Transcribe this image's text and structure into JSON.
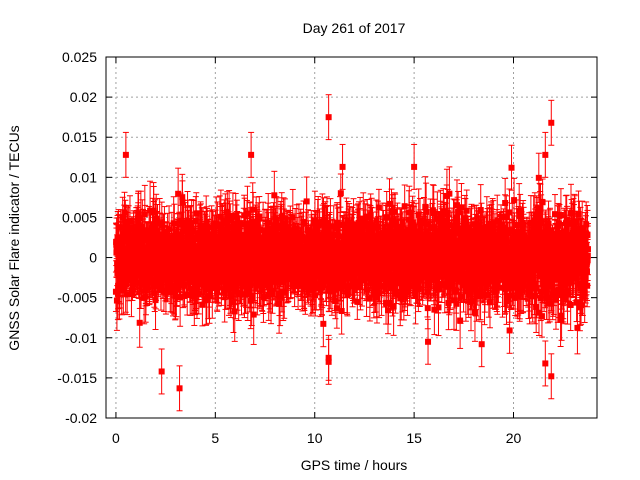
{
  "chart_data": {
    "type": "scatter",
    "title": "Day 261 of 2017",
    "xlabel": "GPS time / hours",
    "ylabel": "GNSS Solar Flare indicator / TECUs",
    "xlim": [
      -0.5,
      24.2
    ],
    "ylim": [
      -0.02,
      0.025
    ],
    "x_ticks": [
      0,
      5,
      10,
      15,
      20
    ],
    "x_tick_labels": [
      "0",
      "5",
      "10",
      "15",
      "20"
    ],
    "y_ticks": [
      -0.02,
      -0.015,
      -0.01,
      -0.005,
      0,
      0.005,
      0.01,
      0.015,
      0.02,
      0.025
    ],
    "y_tick_labels": [
      "-0.02",
      "-0.015",
      "-0.01",
      "-0.005",
      "0",
      "0.005",
      "0.01",
      "0.015",
      "0.02",
      "0.025"
    ],
    "grid": true,
    "series": [
      {
        "name": "GNSS solar flare indicator",
        "color": "#ff0000",
        "marker": "square",
        "error_bars": true,
        "approx_error": 0.0028,
        "x_range": [
          0,
          23.75
        ],
        "sample_interval_hours": 0.0083,
        "scatter_std": 0.0045,
        "notable_points": [
          {
            "x": 10.7,
            "y": 0.0175
          },
          {
            "x": 21.9,
            "y": 0.0168
          },
          {
            "x": 21.6,
            "y": 0.0128
          },
          {
            "x": 3.2,
            "y": -0.0163
          },
          {
            "x": 21.9,
            "y": -0.0148
          },
          {
            "x": 2.3,
            "y": -0.0142
          },
          {
            "x": 10.7,
            "y": -0.013
          },
          {
            "x": 21.6,
            "y": -0.0132
          },
          {
            "x": 10.7,
            "y": -0.0125
          },
          {
            "x": 0.5,
            "y": 0.0128
          },
          {
            "x": 6.8,
            "y": 0.0128
          },
          {
            "x": 15.0,
            "y": 0.0113
          },
          {
            "x": 18.4,
            "y": -0.0108
          },
          {
            "x": 15.7,
            "y": -0.0105
          },
          {
            "x": 11.4,
            "y": 0.0113
          },
          {
            "x": 19.9,
            "y": 0.0112
          }
        ]
      }
    ]
  }
}
